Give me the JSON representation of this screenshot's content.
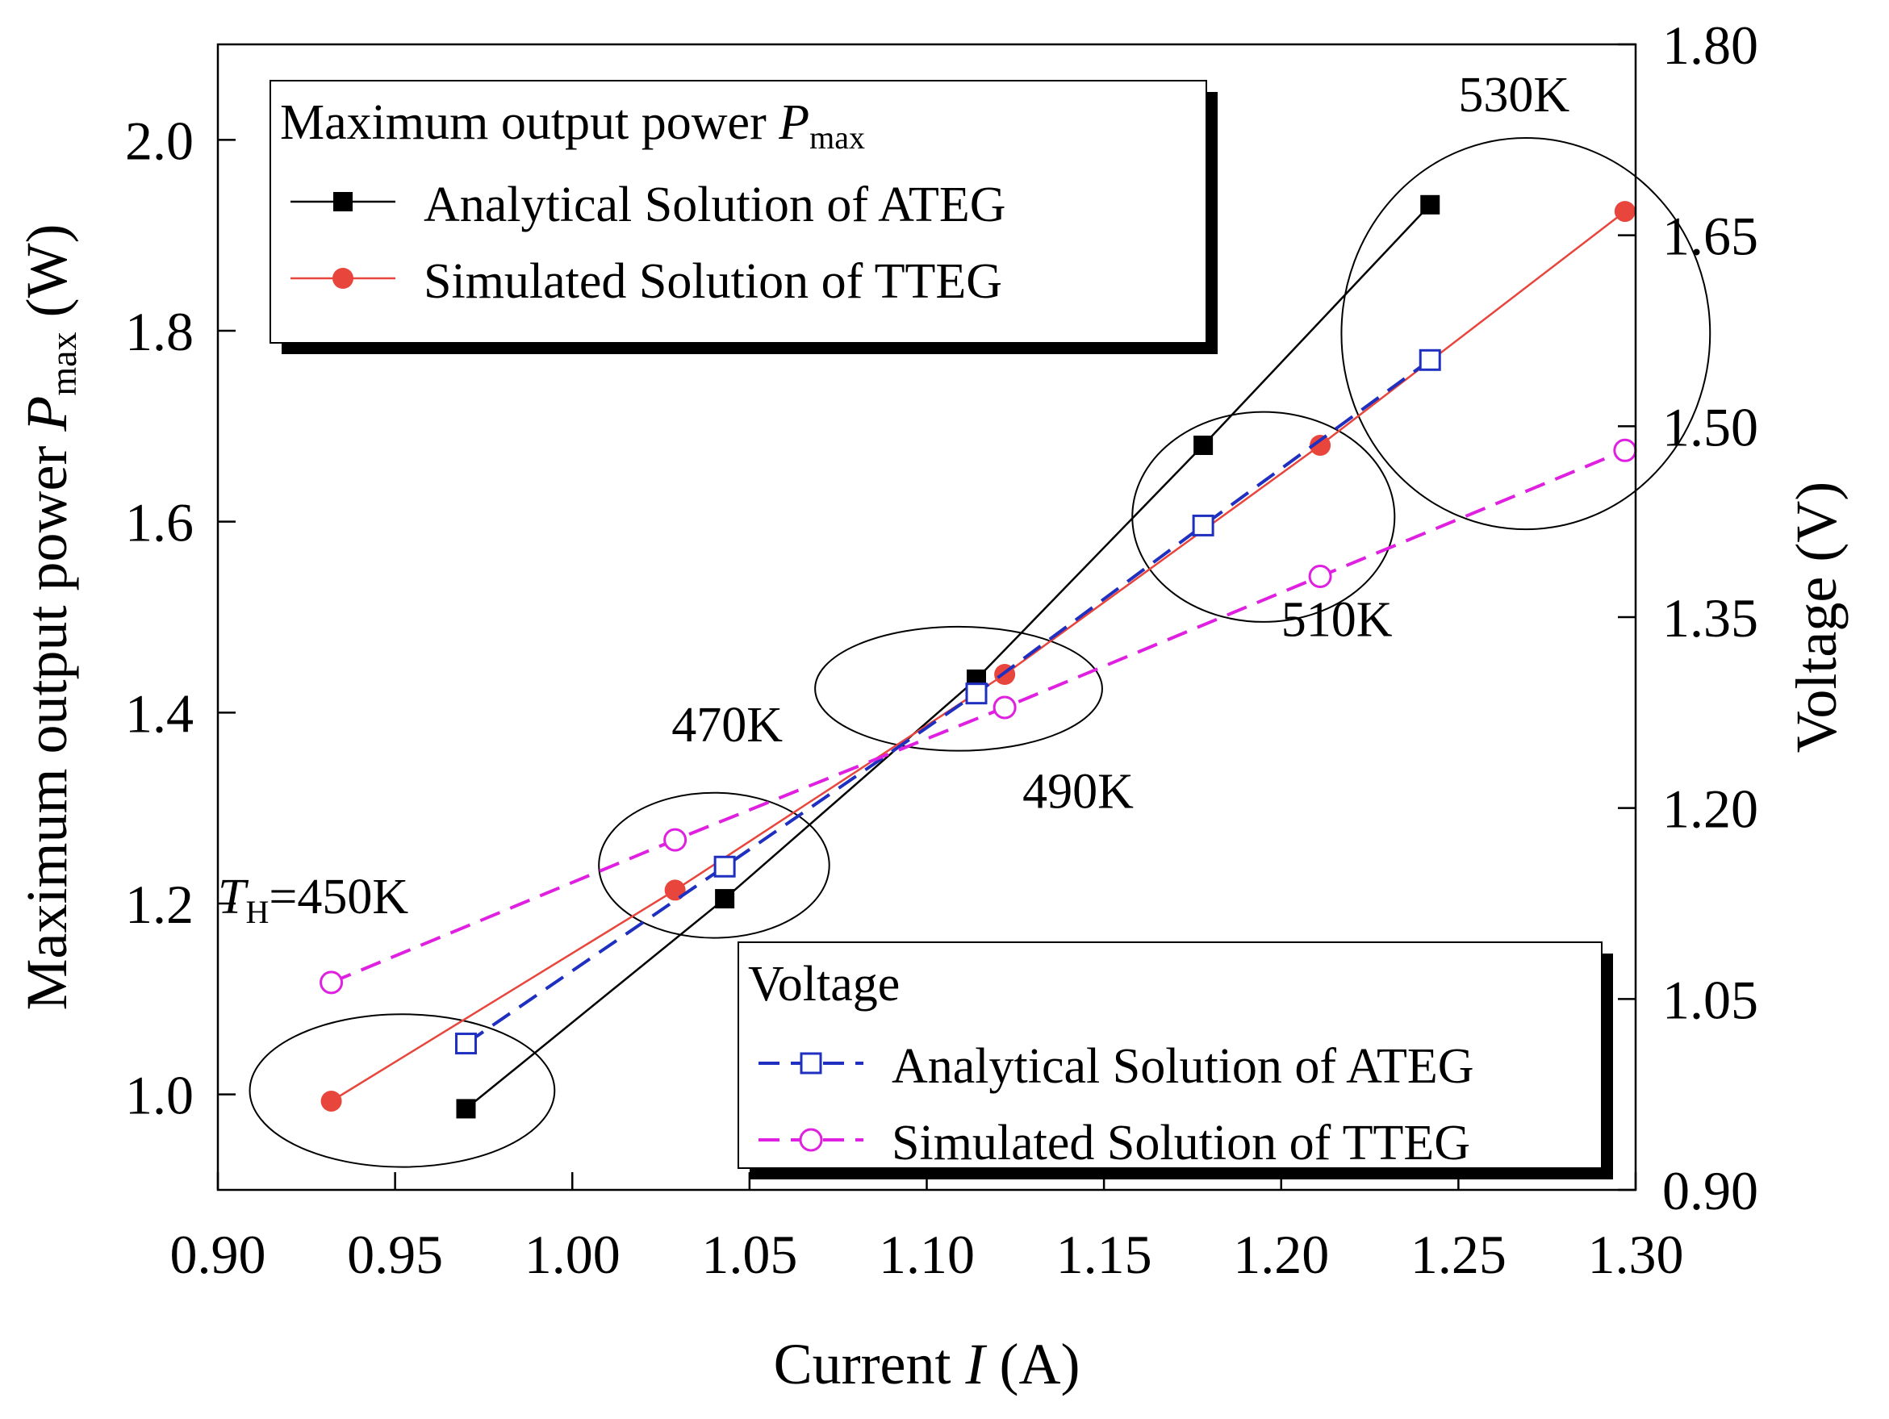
{
  "chart_data": {
    "type": "line",
    "dual_axis": true,
    "title": "",
    "xlabel": {
      "prefix": "Current ",
      "var": "I",
      "suffix": " (A)"
    },
    "ylabel_left": {
      "prefix": "Maximum output power ",
      "var": "P",
      "sub": "max",
      "suffix": " (W)"
    },
    "ylabel_right": "Voltage (V)",
    "xlim": [
      0.9,
      1.3
    ],
    "ylim_left": [
      0.9,
      2.1
    ],
    "ylim_right": [
      0.9,
      1.8
    ],
    "x_ticks": [
      0.9,
      0.95,
      1.0,
      1.05,
      1.1,
      1.15,
      1.2,
      1.25,
      1.3
    ],
    "x_tick_labels": [
      "0.90",
      "0.95",
      "1.00",
      "1.05",
      "1.10",
      "1.15",
      "1.20",
      "1.25",
      "1.30"
    ],
    "y_left_ticks": [
      1.0,
      1.2,
      1.4,
      1.6,
      1.8,
      2.0
    ],
    "y_left_tick_labels": [
      "1.0",
      "1.2",
      "1.4",
      "1.6",
      "1.8",
      "2.0"
    ],
    "y_right_ticks": [
      0.9,
      1.05,
      1.2,
      1.35,
      1.5,
      1.65,
      1.8
    ],
    "y_right_tick_labels": [
      "0.90",
      "1.05",
      "1.20",
      "1.35",
      "1.50",
      "1.65",
      "1.80"
    ],
    "series": [
      {
        "name": "Analytical Solution of ATEG",
        "group": "power",
        "axis": "left",
        "color": "#000000",
        "marker": "square-filled",
        "line": "solid",
        "x": [
          0.97,
          1.043,
          1.114,
          1.178,
          1.242
        ],
        "y": [
          0.985,
          1.205,
          1.435,
          1.68,
          1.932
        ]
      },
      {
        "name": "Simulated Solution of TTEG",
        "group": "power",
        "axis": "left",
        "color": "#e8453c",
        "marker": "circle-filled",
        "line": "solid",
        "x": [
          0.932,
          1.029,
          1.122,
          1.211,
          1.297
        ],
        "y": [
          0.993,
          1.214,
          1.44,
          1.68,
          1.925
        ]
      },
      {
        "name": "Analytical Solution of ATEG",
        "group": "voltage",
        "axis": "right",
        "color": "#1f2fbf",
        "marker": "square-open",
        "line": "dashed",
        "x": [
          0.97,
          1.043,
          1.114,
          1.178,
          1.242
        ],
        "y": [
          1.015,
          1.154,
          1.29,
          1.422,
          1.552
        ]
      },
      {
        "name": "Simulated Solution of TTEG",
        "group": "voltage",
        "axis": "right",
        "color": "#e020e0",
        "marker": "circle-open",
        "line": "dashed",
        "x": [
          0.932,
          1.029,
          1.122,
          1.211,
          1.297
        ],
        "y": [
          1.063,
          1.175,
          1.279,
          1.382,
          1.481
        ]
      }
    ],
    "legends": [
      {
        "position": "top-left",
        "title_prefix": "Maximum output power ",
        "title_var": "P",
        "title_sub": "max",
        "entries": [
          "Analytical Solution of ATEG",
          "Simulated Solution of TTEG"
        ]
      },
      {
        "position": "bottom-right",
        "title": "Voltage",
        "entries": [
          "Analytical Solution of ATEG",
          "Simulated Solution of TTEG"
        ]
      }
    ],
    "annotations": [
      {
        "var": "T",
        "sub": "H",
        "text": "=450K",
        "x": 0.9,
        "y": 1.19
      },
      {
        "text": "470K",
        "x": 1.028,
        "y": 1.37
      },
      {
        "text": "490K",
        "x": 1.127,
        "y": 1.3
      },
      {
        "text": "510K",
        "x": 1.2,
        "y": 1.48
      },
      {
        "text": "530K",
        "x": 1.25,
        "y": 2.03
      }
    ],
    "ellipses": [
      {
        "label": "450K",
        "cx": 0.952,
        "cy": 1.004,
        "rx": 0.043,
        "ry": 0.08
      },
      {
        "label": "470K",
        "cx": 1.04,
        "cy": 1.24,
        "rx": 0.0325,
        "ry": 0.076
      },
      {
        "label": "490K",
        "cx": 1.109,
        "cy": 1.425,
        "rx": 0.0405,
        "ry": 0.065
      },
      {
        "label": "510K",
        "cx": 1.195,
        "cy": 1.605,
        "rx": 0.037,
        "ry": 0.11
      },
      {
        "label": "530K",
        "cx": 1.269,
        "cy": 1.797,
        "rx": 0.052,
        "ry": 0.205
      }
    ]
  }
}
